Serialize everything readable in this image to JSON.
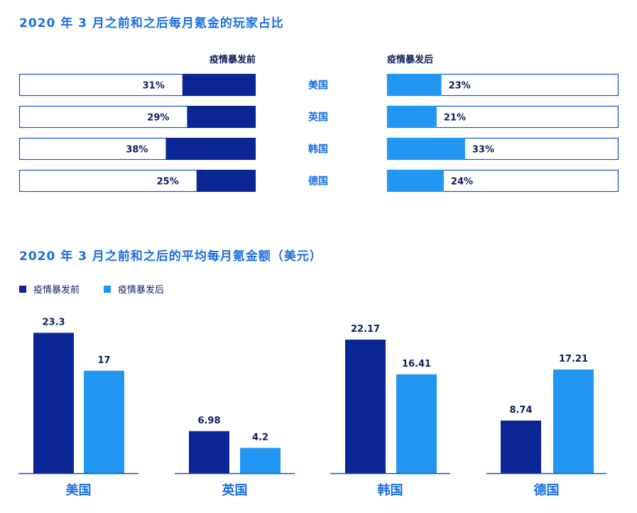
{
  "colors": {
    "title": "#1a6fe0",
    "before": "#0a2594",
    "after": "#2196f3",
    "text": "#0b1f5c",
    "axis": "#1a4fd0"
  },
  "section1": {
    "title": "2020 年 3 月之前和之后每月氪金的玩家占比",
    "before_label": "疫情暴发前",
    "after_label": "疫情暴发后"
  },
  "section2": {
    "title": "2020 年 3 月之前和之后的平均每月氪金额（美元）",
    "legend": [
      "疫情暴发前",
      "疫情暴发后"
    ]
  },
  "chart_data": [
    {
      "type": "bar",
      "orientation": "horizontal",
      "title": "2020 年 3 月之前和之后每月氪金的玩家占比",
      "categories": [
        "美国",
        "英国",
        "韩国",
        "德国"
      ],
      "series": [
        {
          "name": "疫情暴发前",
          "values": [
            31,
            29,
            38,
            25
          ],
          "labels": [
            "31%",
            "29%",
            "38%",
            "25%"
          ]
        },
        {
          "name": "疫情暴发后",
          "values": [
            23,
            21,
            33,
            24
          ],
          "labels": [
            "23%",
            "21%",
            "33%",
            "24%"
          ]
        }
      ],
      "ylim": [
        0,
        100
      ]
    },
    {
      "type": "bar",
      "title": "2020 年 3 月之前和之后的平均每月氪金额（美元）",
      "categories": [
        "美国",
        "英国",
        "韩国",
        "德国"
      ],
      "series": [
        {
          "name": "疫情暴发前",
          "values": [
            23.3,
            6.98,
            22.17,
            8.74
          ],
          "labels": [
            "23.3",
            "6.98",
            "22.17",
            "8.74"
          ]
        },
        {
          "name": "疫情暴发后",
          "values": [
            17,
            4.2,
            16.41,
            17.21
          ],
          "labels": [
            "17",
            "4.2",
            "16.41",
            "17.21"
          ]
        }
      ],
      "ylim": [
        0,
        25
      ],
      "grid": false,
      "legend": "top-left"
    }
  ]
}
